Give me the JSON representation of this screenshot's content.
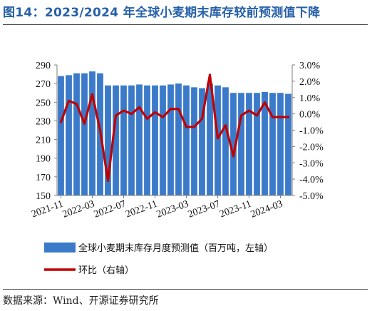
{
  "figure": {
    "title": "图14：2023/2024 年全球小麦期末库存较前预测值下降",
    "source": "数据来源：Wind、开源证券研究所"
  },
  "colors": {
    "title": "#2560a8",
    "bars": "#3a7ac9",
    "line": "#c00000",
    "axis": "#7f7f7f"
  },
  "chart_data": {
    "type": "bar",
    "categories": [
      "2021-11",
      "2021-12",
      "2022-01",
      "2022-02",
      "2022-03",
      "2022-04",
      "2022-05",
      "2022-06",
      "2022-07",
      "2022-08",
      "2022-09",
      "2022-10",
      "2022-11",
      "2022-12",
      "2023-01",
      "2023-02",
      "2023-03",
      "2023-04",
      "2023-05",
      "2023-06",
      "2023-07",
      "2023-08",
      "2023-09",
      "2023-10",
      "2023-11",
      "2023-12",
      "2024-01",
      "2024-02",
      "2024-03",
      "2024-04"
    ],
    "x_tick_labels": [
      "2021-11",
      "2022-03",
      "2022-07",
      "2022-11",
      "2023-03",
      "2023-07",
      "2023-11",
      "2024-03"
    ],
    "series": [
      {
        "name": "全球小麦期末库存月度预测值（百万吨，左轴）",
        "type": "bar",
        "axis": "left",
        "values": [
          278,
          279,
          281,
          281,
          283,
          281,
          268,
          268,
          268,
          268,
          269,
          268,
          268,
          268,
          269,
          270,
          268,
          266,
          265,
          270,
          268,
          266,
          260,
          260,
          260,
          260,
          261,
          260,
          260,
          259
        ]
      },
      {
        "name": "环比（右轴）",
        "type": "line",
        "axis": "right",
        "values": [
          -0.5,
          0.8,
          0.6,
          -0.6,
          1.2,
          -1.0,
          -4.1,
          -0.1,
          0.2,
          0.0,
          0.4,
          -0.3,
          0.1,
          -0.2,
          0.3,
          0.3,
          -0.8,
          -0.8,
          -0.3,
          2.4,
          -1.5,
          -0.7,
          -2.6,
          -0.1,
          0.2,
          -0.1,
          0.7,
          -0.2,
          -0.2,
          -0.2
        ]
      }
    ],
    "y_left": {
      "lim": [
        150,
        290
      ],
      "ticks": [
        150,
        170,
        190,
        210,
        230,
        250,
        270,
        290
      ]
    },
    "y_right": {
      "lim": [
        -5.0,
        3.0
      ],
      "ticks": [
        "3.0%",
        "2.0%",
        "1.0%",
        "0.0%",
        "-1.0%",
        "-2.0%",
        "-3.0%",
        "-4.0%",
        "-5.0%"
      ]
    },
    "grid": false,
    "legend_position": "bottom"
  }
}
